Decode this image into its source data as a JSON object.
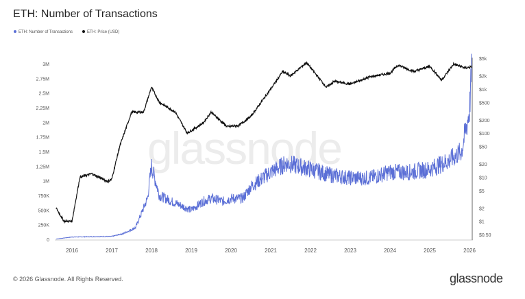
{
  "header": {
    "title": "ETH: Number of Transactions"
  },
  "footer": {
    "copyright": "© 2026 Glassnode. All Rights Reserved.",
    "brand": "glassnode",
    "watermark": "glassnode"
  },
  "chart_data": {
    "type": "line",
    "title": "ETH: Number of Transactions",
    "legend": [
      "ETH: Number of Transactions",
      "ETH: Price (USD)"
    ],
    "legend_placement": "top-left",
    "x_ticks": [
      "2016",
      "2017",
      "2018",
      "2019",
      "2020",
      "2021",
      "2022",
      "2023",
      "2024",
      "2025",
      "2026"
    ],
    "y_left_ticks": [
      "0",
      "250K",
      "500K",
      "750K",
      "1M",
      "1.25M",
      "1.5M",
      "1.75M",
      "2M",
      "2.25M",
      "2.5M",
      "2.75M",
      "3M"
    ],
    "y_left_range": [
      0,
      3000000
    ],
    "y_right_ticks": [
      "$0.50",
      "$1",
      "$2",
      "$5",
      "$10",
      "$20",
      "$50",
      "$100",
      "$200",
      "$500",
      "$1k",
      "$2k",
      "$5k"
    ],
    "y_right_values": [
      0.5,
      1,
      2,
      5,
      10,
      20,
      50,
      100,
      200,
      500,
      1000,
      2000,
      5000
    ],
    "y_right_scale": "log",
    "colors": {
      "transactions": "#5b6fd6",
      "price": "#111111"
    },
    "series": [
      {
        "name": "ETH: Number of Transactions",
        "axis": "left",
        "x": [
          2015.6,
          2016,
          2016.5,
          2017,
          2017.3,
          2017.6,
          2017.9,
          2018.0,
          2018.2,
          2018.5,
          2019,
          2019.3,
          2019.5,
          2019.8,
          2020,
          2020.3,
          2020.5,
          2021,
          2021.4,
          2021.7,
          2022,
          2022.5,
          2023,
          2023.5,
          2024,
          2024.5,
          2025,
          2025.5,
          2025.8,
          2026,
          2026.05
        ],
        "values": [
          5000,
          40000,
          45000,
          50000,
          100000,
          200000,
          700000,
          1250000,
          750000,
          650000,
          500000,
          650000,
          700000,
          650000,
          700000,
          700000,
          900000,
          1150000,
          1300000,
          1250000,
          1200000,
          1100000,
          1050000,
          1050000,
          1150000,
          1150000,
          1200000,
          1350000,
          1500000,
          2200000,
          2850000
        ]
      },
      {
        "name": "ETH: Price (USD)",
        "axis": "right",
        "x": [
          2015.6,
          2015.8,
          2016.0,
          2016.2,
          2016.5,
          2016.9,
          2017.0,
          2017.2,
          2017.5,
          2017.8,
          2018.0,
          2018.2,
          2018.6,
          2018.9,
          2019.3,
          2019.5,
          2019.9,
          2020.2,
          2020.5,
          2021,
          2021.3,
          2021.5,
          2021.9,
          2022.4,
          2022.6,
          2023,
          2023.5,
          2024,
          2024.2,
          2024.6,
          2025,
          2025.3,
          2025.6,
          2025.9,
          2026.05
        ],
        "values": [
          2,
          1,
          1,
          10,
          12,
          8,
          9,
          50,
          300,
          300,
          1100,
          500,
          300,
          100,
          170,
          300,
          140,
          150,
          240,
          1000,
          2500,
          2000,
          4000,
          1100,
          1500,
          1300,
          1900,
          2300,
          3500,
          2500,
          3300,
          1600,
          3700,
          3000,
          3200
        ]
      }
    ]
  }
}
